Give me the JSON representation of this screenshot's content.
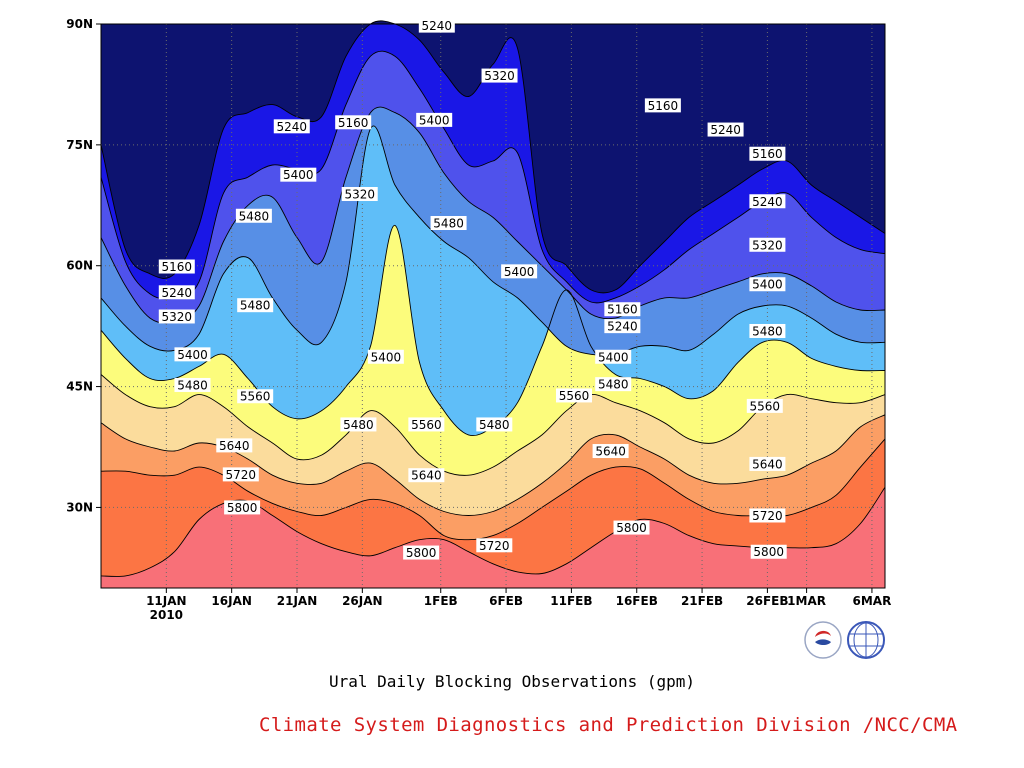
{
  "chart_data": {
    "type": "heatmap",
    "subtype": "filled-contour (time-latitude Hovmoller)",
    "title": "",
    "caption": "Ural Daily Blocking Observations (gpm)",
    "credit": "Climate System Diagnostics and Prediction Division /NCC/CMA",
    "xlabel": "",
    "ylabel": "",
    "x_ticks": [
      "11JAN",
      "16JAN",
      "21JAN",
      "26JAN",
      "1FEB",
      "6FEB",
      "11FEB",
      "16FEB",
      "21FEB",
      "26FEB",
      "1MAR",
      "6MAR"
    ],
    "x_tick_days": [
      10,
      15,
      20,
      25,
      31,
      36,
      41,
      46,
      51,
      56,
      59,
      64
    ],
    "x_year_label": "2010",
    "xlim_days": [
      5,
      65
    ],
    "y_ticks": [
      "30N",
      "45N",
      "60N",
      "75N",
      "90N"
    ],
    "y_tick_values": [
      30,
      45,
      60,
      75,
      90
    ],
    "ylim": [
      20,
      90
    ],
    "grid": true,
    "contour_levels": [
      5160,
      5240,
      5320,
      5400,
      5480,
      5560,
      5640,
      5720,
      5800
    ],
    "fill_colors": [
      "#0d1370",
      "#1a17e6",
      "#4f52ec",
      "#578fe6",
      "#5fbef8",
      "#fcfc7c",
      "#fbdc9c",
      "#fb9e64",
      "#fc7544",
      "#f87078"
    ],
    "contour_lines": [
      {
        "level": 5800,
        "lat": [
          21.5,
          21.5,
          22.5,
          24.5,
          28.5,
          30.5,
          30.8,
          29.0,
          27.0,
          25.5,
          24.5,
          24.0,
          25.0,
          26.0,
          26.0,
          24.5,
          23.0,
          22.0,
          21.8,
          23.0,
          25.0,
          27.0,
          28.5,
          28.0,
          26.5,
          25.5,
          25.2,
          25.0,
          25.0,
          25.0,
          25.5,
          28.0,
          32.5
        ]
      },
      {
        "level": 5720,
        "lat": [
          34.5,
          34.5,
          34.0,
          34.0,
          35.0,
          34.0,
          32.0,
          30.5,
          29.5,
          29.0,
          30.0,
          31.0,
          30.5,
          29.0,
          26.5,
          26.0,
          26.5,
          28.0,
          30.0,
          32.0,
          34.0,
          35.0,
          34.8,
          33.0,
          31.0,
          29.5,
          29.0,
          29.0,
          29.0,
          30.0,
          31.5,
          35.0,
          38.5
        ]
      },
      {
        "level": 5640,
        "lat": [
          40.5,
          38.5,
          37.5,
          37.0,
          38.0,
          37.5,
          36.0,
          34.0,
          33.0,
          33.0,
          34.5,
          35.5,
          33.5,
          31.0,
          29.5,
          29.0,
          29.5,
          31.0,
          33.0,
          35.5,
          38.5,
          39.0,
          37.5,
          36.0,
          34.0,
          33.0,
          33.0,
          33.5,
          34.0,
          35.5,
          37.0,
          40.0,
          41.5
        ]
      },
      {
        "level": 5560,
        "lat": [
          46.5,
          44.0,
          42.5,
          42.5,
          44.0,
          42.5,
          40.0,
          38.0,
          36.0,
          36.5,
          39.0,
          42.0,
          40.0,
          36.5,
          34.5,
          34.0,
          35.0,
          37.0,
          39.0,
          42.0,
          44.0,
          43.0,
          42.0,
          40.5,
          38.5,
          38.0,
          39.5,
          42.5,
          44.0,
          43.5,
          43.0,
          43.0,
          44.0
        ]
      },
      {
        "level": 5480,
        "lat": [
          52.0,
          48.5,
          46.0,
          46.0,
          47.5,
          49.0,
          46.0,
          42.5,
          41.0,
          42.0,
          45.0,
          50.0,
          65.0,
          48.0,
          42.0,
          39.0,
          40.0,
          43.0,
          50.0,
          57.0,
          50.0,
          46.5,
          46.0,
          45.0,
          43.5,
          44.5,
          48.0,
          50.5,
          50.5,
          48.5,
          47.5,
          47.0,
          47.0
        ]
      },
      {
        "level": 5400,
        "lat": [
          56.0,
          52.5,
          50.0,
          49.5,
          51.5,
          59.0,
          61.0,
          56.0,
          52.0,
          50.5,
          58.0,
          77.0,
          70.0,
          66.0,
          63.0,
          61.0,
          58.0,
          56.0,
          53.0,
          50.0,
          49.0,
          49.0,
          50.0,
          50.0,
          49.5,
          51.5,
          54.0,
          55.0,
          55.0,
          53.5,
          51.5,
          50.5,
          50.5
        ]
      },
      {
        "level": 5320,
        "lat": [
          63.5,
          57.5,
          53.5,
          53.0,
          55.0,
          63.0,
          67.5,
          68.5,
          63.5,
          60.5,
          71.0,
          79.0,
          79.0,
          76.5,
          71.5,
          68.0,
          66.0,
          63.0,
          60.0,
          57.0,
          54.0,
          53.5,
          55.0,
          56.0,
          56.0,
          57.0,
          58.0,
          59.0,
          59.0,
          57.5,
          55.5,
          54.5,
          54.5
        ]
      },
      {
        "level": 5240,
        "lat": [
          71.0,
          60.5,
          56.5,
          56.0,
          58.0,
          69.0,
          71.0,
          72.5,
          72.0,
          72.0,
          80.0,
          86.0,
          86.0,
          82.0,
          77.0,
          72.5,
          73.0,
          74.0,
          62.0,
          58.0,
          55.5,
          56.0,
          57.5,
          59.5,
          62.0,
          64.0,
          66.0,
          68.0,
          69.0,
          66.0,
          63.5,
          62.0,
          61.5
        ]
      },
      {
        "level": 5160,
        "lat": [
          75.0,
          62.0,
          59.0,
          59.0,
          65.0,
          77.0,
          79.0,
          80.0,
          78.5,
          78.5,
          86.0,
          90.0,
          90.0,
          88.0,
          84.0,
          81.0,
          85.0,
          87.0,
          64.0,
          60.0,
          57.0,
          57.0,
          60.0,
          63.0,
          66.0,
          68.0,
          70.0,
          72.0,
          73.0,
          70.0,
          68.0,
          66.0,
          64.0
        ]
      }
    ],
    "labels": [
      {
        "text": "5240",
        "day": 30.7,
        "lat": 89.8
      },
      {
        "text": "5320",
        "day": 35.5,
        "lat": 83.6
      },
      {
        "text": "5160",
        "day": 48.0,
        "lat": 79.9
      },
      {
        "text": "5240",
        "day": 52.8,
        "lat": 76.9
      },
      {
        "text": "5160",
        "day": 56.0,
        "lat": 73.9
      },
      {
        "text": "5240",
        "day": 56.0,
        "lat": 68.0
      },
      {
        "text": "5320",
        "day": 56.0,
        "lat": 62.6
      },
      {
        "text": "5400",
        "day": 56.0,
        "lat": 57.7
      },
      {
        "text": "5480",
        "day": 56.0,
        "lat": 51.9
      },
      {
        "text": "5560",
        "day": 55.8,
        "lat": 42.6
      },
      {
        "text": "5640",
        "day": 56.0,
        "lat": 35.4
      },
      {
        "text": "5720",
        "day": 56.0,
        "lat": 29.0
      },
      {
        "text": "5800",
        "day": 56.1,
        "lat": 24.5
      },
      {
        "text": "5240",
        "day": 19.6,
        "lat": 77.3
      },
      {
        "text": "5160",
        "day": 24.3,
        "lat": 77.8
      },
      {
        "text": "5400",
        "day": 30.5,
        "lat": 78.1
      },
      {
        "text": "5400",
        "day": 20.1,
        "lat": 71.3
      },
      {
        "text": "5320",
        "day": 24.8,
        "lat": 68.9
      },
      {
        "text": "5480",
        "day": 16.7,
        "lat": 66.2
      },
      {
        "text": "5480",
        "day": 31.6,
        "lat": 65.3
      },
      {
        "text": "5400",
        "day": 37.0,
        "lat": 59.3
      },
      {
        "text": "5480",
        "day": 16.8,
        "lat": 55.1
      },
      {
        "text": "5400",
        "day": 26.8,
        "lat": 48.7
      },
      {
        "text": "5160",
        "day": 44.9,
        "lat": 54.6
      },
      {
        "text": "5240",
        "day": 44.9,
        "lat": 52.5
      },
      {
        "text": "5160",
        "day": 10.8,
        "lat": 59.9
      },
      {
        "text": "5240",
        "day": 10.8,
        "lat": 56.7
      },
      {
        "text": "5320",
        "day": 10.8,
        "lat": 53.7
      },
      {
        "text": "5400",
        "day": 12.0,
        "lat": 49.0
      },
      {
        "text": "5480",
        "day": 12.0,
        "lat": 45.2
      },
      {
        "text": "5400",
        "day": 44.2,
        "lat": 48.7
      },
      {
        "text": "5480",
        "day": 44.2,
        "lat": 45.3
      },
      {
        "text": "5560",
        "day": 16.8,
        "lat": 43.8
      },
      {
        "text": "5560",
        "day": 41.2,
        "lat": 43.9
      },
      {
        "text": "5480",
        "day": 24.7,
        "lat": 40.3
      },
      {
        "text": "5560",
        "day": 29.9,
        "lat": 40.3
      },
      {
        "text": "5480",
        "day": 35.1,
        "lat": 40.3
      },
      {
        "text": "5640",
        "day": 15.2,
        "lat": 37.7
      },
      {
        "text": "5640",
        "day": 44.0,
        "lat": 37.0
      },
      {
        "text": "5720",
        "day": 15.7,
        "lat": 34.1
      },
      {
        "text": "5640",
        "day": 29.9,
        "lat": 34.0
      },
      {
        "text": "5800",
        "day": 15.8,
        "lat": 30.0
      },
      {
        "text": "5800",
        "day": 45.6,
        "lat": 27.5
      },
      {
        "text": "5720",
        "day": 35.1,
        "lat": 25.3
      },
      {
        "text": "5800",
        "day": 29.5,
        "lat": 24.4
      }
    ]
  }
}
